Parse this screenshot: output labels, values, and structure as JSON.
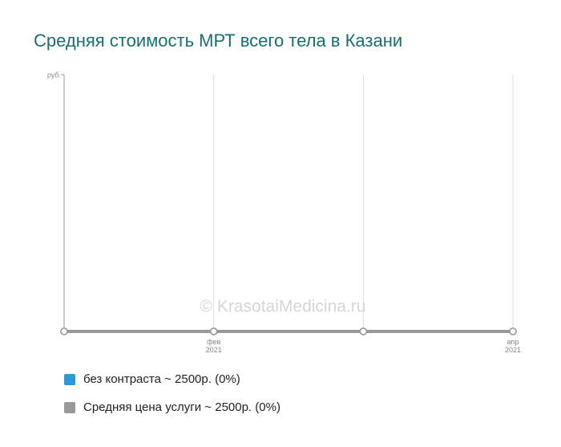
{
  "chart_data": {
    "type": "line",
    "title": "Средняя стоимость МРТ всего тела в Казани",
    "y_label": "руб.",
    "watermark": "© KrasotaiMedicina.ru",
    "categories": [
      null,
      "фев\n2021",
      null,
      "апр\n2021"
    ],
    "series": [
      {
        "name": "без контраста ~ 2500р. (0%)",
        "color": "#2a9ad8",
        "values": [
          2500,
          2500,
          2500,
          2500
        ]
      },
      {
        "name": "Средняя цена услуги ~ 2500р. (0%)",
        "color": "#999999",
        "values": [
          2500,
          2500,
          2500,
          2500
        ]
      }
    ],
    "ylim": [
      2500,
      2600
    ],
    "grid": true
  }
}
